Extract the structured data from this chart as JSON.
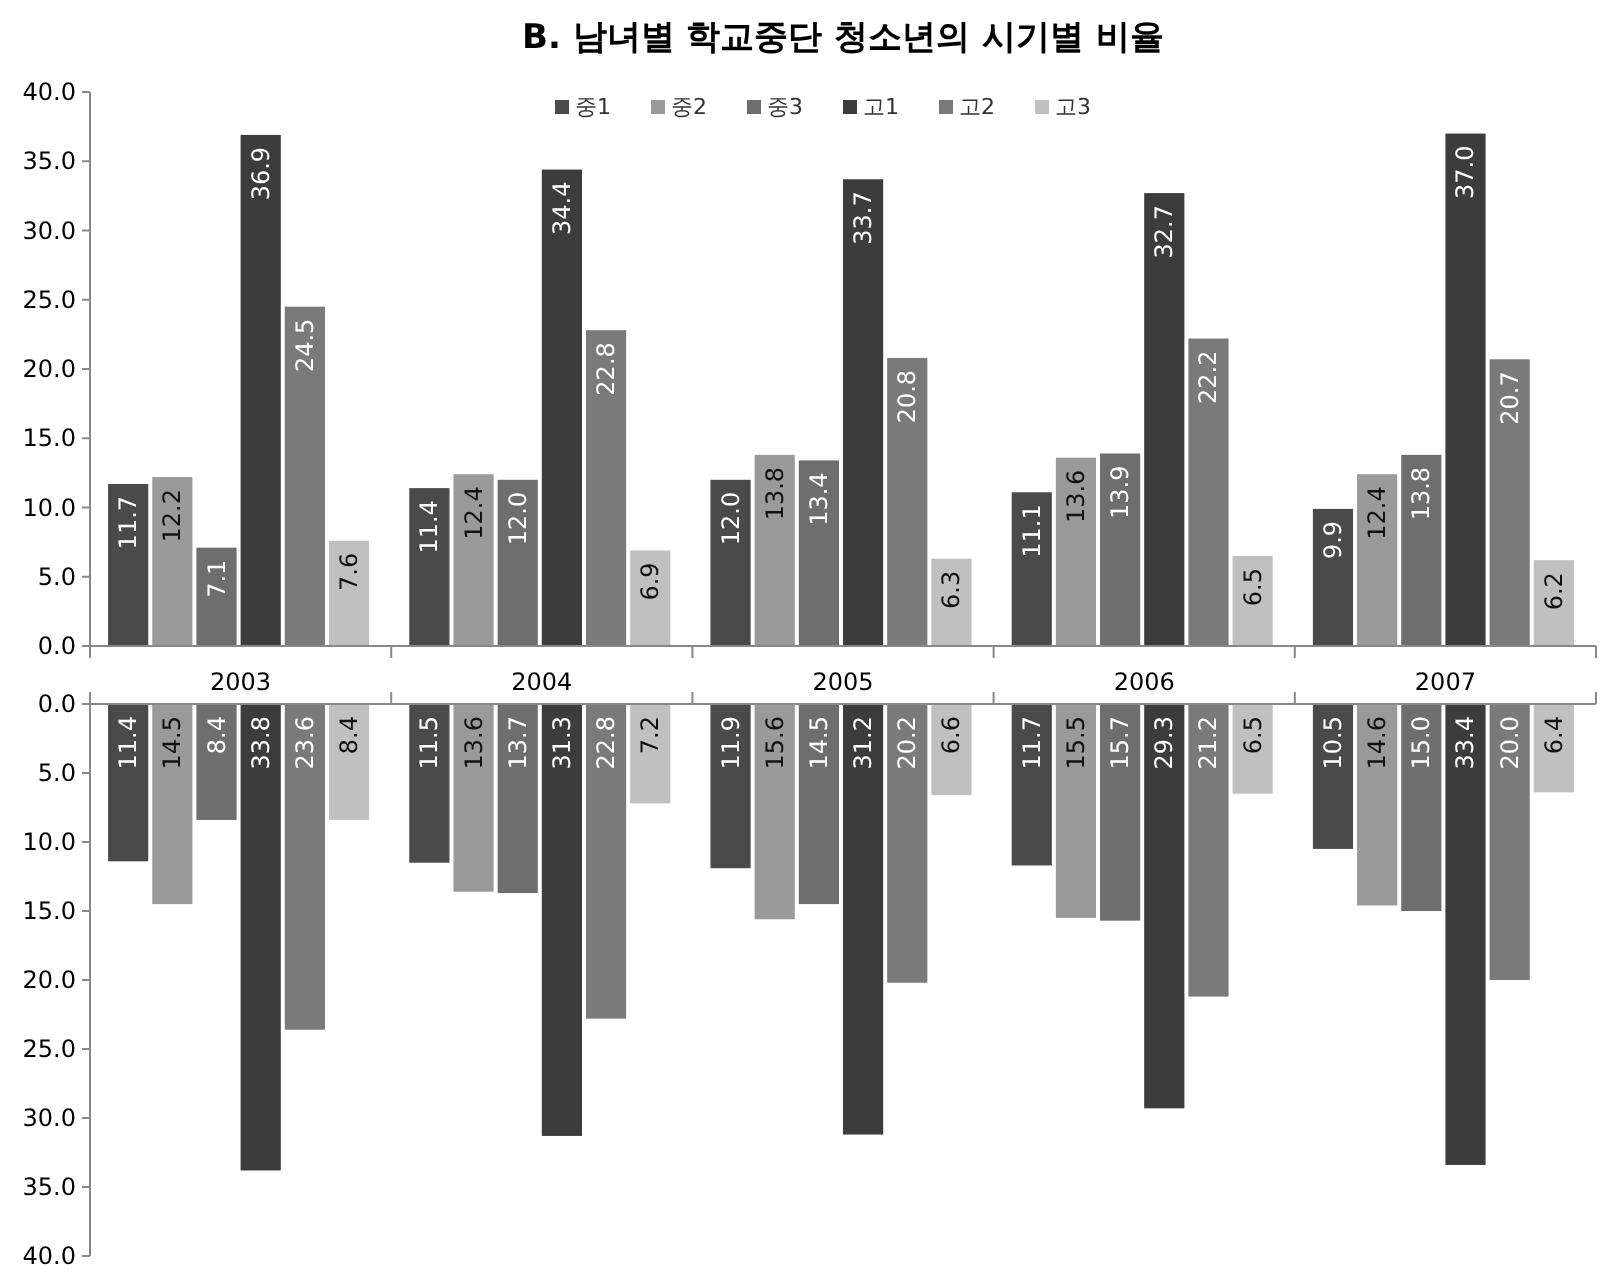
{
  "chart_data": [
    {
      "type": "bar",
      "title": "B. 남녀별 학교중단 청소년의 시기별 비율",
      "categories": [
        "2003",
        "2004",
        "2005",
        "2006",
        "2007"
      ],
      "ylim": [
        0,
        40
      ],
      "yticks": [
        {
          "value": 0,
          "label": "0.0"
        },
        {
          "value": 5,
          "label": "5.0"
        },
        {
          "value": 10,
          "label": "10.0"
        },
        {
          "value": 15,
          "label": "15.0"
        },
        {
          "value": 20,
          "label": "20.0"
        },
        {
          "value": 25,
          "label": "25.0"
        },
        {
          "value": 30,
          "label": "30.0"
        },
        {
          "value": 35,
          "label": "35.0"
        },
        {
          "value": 40,
          "label": "40.0"
        }
      ],
      "legend": "top",
      "grid": false,
      "series": [
        {
          "name": "중1",
          "color": "#4a4a4a",
          "values": [
            11.7,
            11.4,
            12.0,
            11.1,
            9.9
          ],
          "value_labels": [
            "11.7",
            "11.4",
            "12.0",
            "11.1",
            "9.9"
          ]
        },
        {
          "name": "중2",
          "color": "#9a9a9a",
          "values": [
            12.2,
            12.4,
            13.8,
            13.6,
            12.4
          ],
          "value_labels": [
            "12.2",
            "12.4",
            "13.8",
            "13.6",
            "12.4"
          ]
        },
        {
          "name": "중3",
          "color": "#6e6e6e",
          "values": [
            7.1,
            12.0,
            13.4,
            13.9,
            13.8
          ],
          "value_labels": [
            "7.1",
            "12.0",
            "13.4",
            "13.9",
            "13.8"
          ]
        },
        {
          "name": "고1",
          "color": "#3c3c3c",
          "values": [
            36.9,
            34.4,
            33.7,
            32.7,
            37.0
          ],
          "value_labels": [
            "36.9",
            "34.4",
            "33.7",
            "32.7",
            "37.0"
          ]
        },
        {
          "name": "고2",
          "color": "#7a7a7a",
          "values": [
            24.5,
            22.8,
            20.8,
            22.2,
            20.7
          ],
          "value_labels": [
            "24.5",
            "22.8",
            "20.8",
            "22.2",
            "20.7"
          ]
        },
        {
          "name": "고3",
          "color": "#c0c0c0",
          "values": [
            7.6,
            6.9,
            6.3,
            6.5,
            6.2
          ],
          "value_labels": [
            "7.6",
            "6.9",
            "6.3",
            "6.5",
            "6.2"
          ]
        }
      ]
    },
    {
      "type": "bar",
      "categories": [
        null,
        null,
        null,
        null,
        null
      ],
      "tick_labels": "y",
      "ylim": [
        40,
        0
      ],
      "yticks": [
        {
          "value": 0,
          "label": "0.0"
        },
        {
          "value": 5,
          "label": "5.0"
        },
        {
          "value": 10,
          "label": "10.0"
        },
        {
          "value": 15,
          "label": "15.0"
        },
        {
          "value": 20,
          "label": "20.0"
        },
        {
          "value": 25,
          "label": "25.0"
        },
        {
          "value": 30,
          "label": "30.0"
        },
        {
          "value": 35,
          "label": "35.0"
        },
        {
          "value": 40,
          "label": "40.0"
        }
      ],
      "grid": false,
      "series": [
        {
          "color": "#4a4a4a",
          "values": [
            11.4,
            11.5,
            11.9,
            11.7,
            10.5
          ],
          "value_labels": [
            "11.4",
            "11.5",
            "11.9",
            "11.7",
            "10.5"
          ]
        },
        {
          "color": "#9a9a9a",
          "values": [
            14.5,
            13.6,
            15.6,
            15.5,
            14.6
          ],
          "value_labels": [
            "14.5",
            "13.6",
            "15.6",
            "15.5",
            "14.6"
          ]
        },
        {
          "color": "#6e6e6e",
          "values": [
            8.4,
            13.7,
            14.5,
            15.7,
            15.0
          ],
          "value_labels": [
            "8.4",
            "13.7",
            "14.5",
            "15.7",
            "15.0"
          ]
        },
        {
          "color": "#3c3c3c",
          "values": [
            33.8,
            31.3,
            31.2,
            29.3,
            33.4
          ],
          "value_labels": [
            "33.8",
            "31.3",
            "31.2",
            "29.3",
            "33.4"
          ]
        },
        {
          "color": "#7a7a7a",
          "values": [
            23.6,
            22.8,
            20.2,
            21.2,
            20.0
          ],
          "value_labels": [
            "23.6",
            "22.8",
            "20.2",
            "21.2",
            "20.0"
          ]
        },
        {
          "color": "#c0c0c0",
          "values": [
            8.4,
            7.2,
            6.6,
            6.5,
            6.4
          ],
          "value_labels": [
            "8.4",
            "7.2",
            "6.6",
            "6.5",
            "6.4"
          ]
        }
      ]
    }
  ]
}
